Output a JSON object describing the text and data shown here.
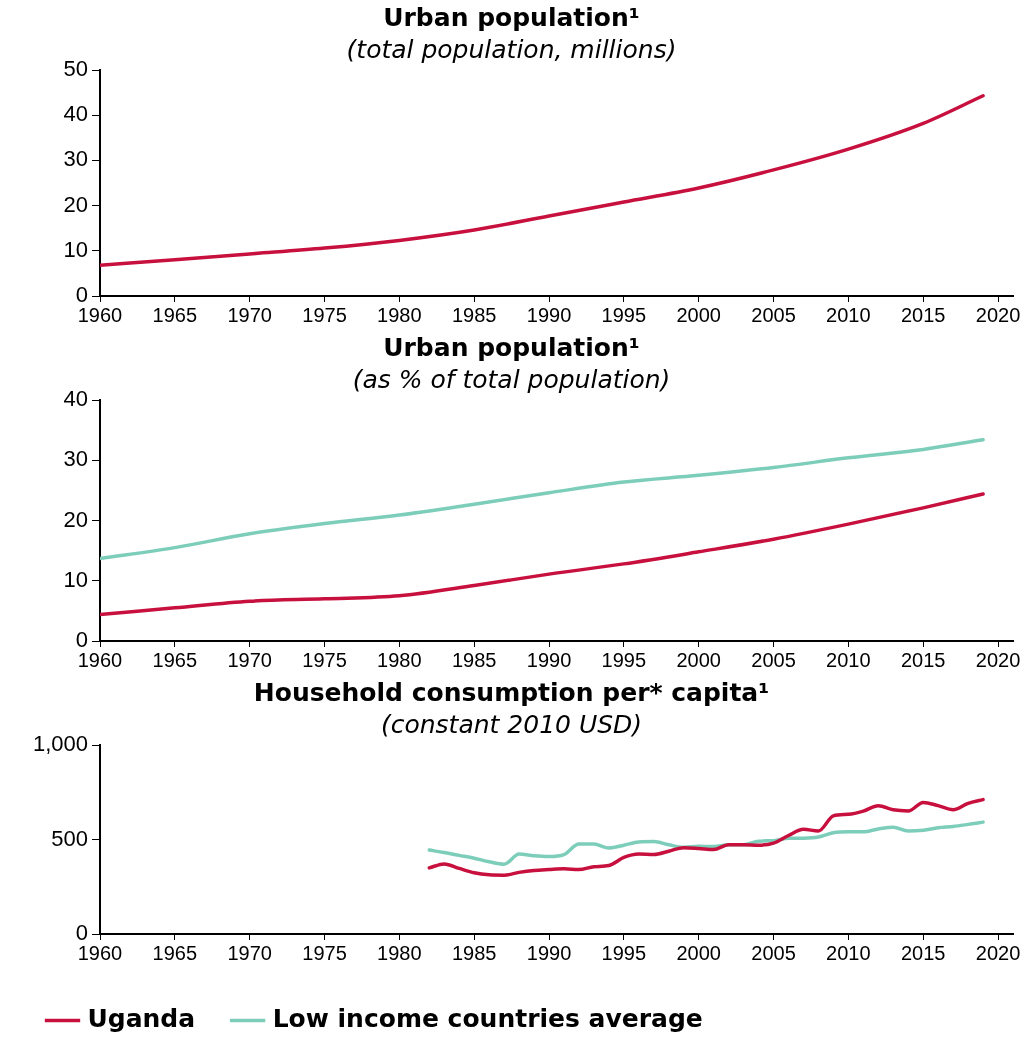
{
  "chart_data": [
    {
      "type": "line",
      "title": "Urban population¹",
      "subtitle": "(total population, millions)",
      "x": [
        1960,
        1965,
        1970,
        1975,
        1980,
        1985,
        1990,
        1995,
        2000,
        2005,
        2010,
        2015,
        2019
      ],
      "series": [
        {
          "color": "#c8103e",
          "values": [
            6.8,
            8.0,
            9.3,
            10.6,
            12.3,
            14.6,
            17.7,
            20.8,
            23.9,
            27.9,
            32.5,
            38.2,
            44.3
          ]
        }
      ],
      "xlim": [
        1960,
        2021
      ],
      "xticks": [
        1960,
        1965,
        1970,
        1975,
        1980,
        1985,
        1990,
        1995,
        2000,
        2005,
        2010,
        2015,
        2020
      ],
      "ylim": [
        0,
        50
      ],
      "yticks": [
        0,
        10,
        20,
        30,
        40,
        50
      ],
      "grid": false
    },
    {
      "type": "line",
      "title": "Urban population¹",
      "subtitle": "(as % of total population)",
      "x": [
        1960,
        1965,
        1970,
        1975,
        1980,
        1985,
        1990,
        1995,
        2000,
        2005,
        2010,
        2015,
        2019
      ],
      "series": [
        {
          "color": "#c8103e",
          "values": [
            4.4,
            5.5,
            6.6,
            7.0,
            7.5,
            9.2,
            11.1,
            12.8,
            14.8,
            16.9,
            19.4,
            22.1,
            24.4
          ]
        },
        {
          "color": "#7dcdbb",
          "values": [
            13.7,
            15.5,
            17.8,
            19.5,
            20.9,
            22.7,
            24.6,
            26.4,
            27.5,
            28.8,
            30.4,
            31.8,
            33.4
          ]
        }
      ],
      "xlim": [
        1960,
        2021
      ],
      "xticks": [
        1960,
        1965,
        1970,
        1975,
        1980,
        1985,
        1990,
        1995,
        2000,
        2005,
        2010,
        2015,
        2020
      ],
      "ylim": [
        0,
        40
      ],
      "yticks": [
        0,
        10,
        20,
        30,
        40
      ],
      "grid": false
    },
    {
      "type": "line",
      "title": "Household consumption per* capita¹",
      "subtitle": "(constant 2010 USD)",
      "x": [
        1982,
        1983,
        1984,
        1985,
        1986,
        1987,
        1988,
        1989,
        1990,
        1991,
        1992,
        1993,
        1994,
        1995,
        1996,
        1997,
        1998,
        1999,
        2000,
        2001,
        2002,
        2003,
        2004,
        2005,
        2006,
        2007,
        2008,
        2009,
        2010,
        2011,
        2012,
        2013,
        2014,
        2015,
        2016,
        2017,
        2018,
        2019
      ],
      "series": [
        {
          "name": "Uganda",
          "color": "#c8103e",
          "values": [
            350,
            371,
            347,
            324,
            313,
            311,
            326,
            336,
            341,
            345,
            341,
            356,
            362,
            405,
            423,
            421,
            438,
            457,
            453,
            447,
            472,
            472,
            470,
            481,
            521,
            554,
            545,
            625,
            633,
            650,
            679,
            657,
            651,
            696,
            679,
            657,
            691,
            711
          ]
        },
        {
          "name": "Low income countries average",
          "color": "#7dcdbb",
          "values": [
            444,
            431,
            416,
            401,
            382,
            369,
            423,
            414,
            410,
            420,
            476,
            476,
            455,
            470,
            487,
            489,
            472,
            459,
            464,
            463,
            472,
            472,
            491,
            494,
            506,
            507,
            513,
            536,
            541,
            541,
            556,
            565,
            545,
            549,
            562,
            569,
            580,
            592
          ]
        }
      ],
      "xlim": [
        1960,
        2021
      ],
      "xticks": [
        1960,
        1965,
        1970,
        1975,
        1980,
        1985,
        1990,
        1995,
        2000,
        2005,
        2010,
        2015,
        2020
      ],
      "ylim": [
        0,
        1000
      ],
      "yticks": [
        0,
        500,
        {
          "value": 1000,
          "label": "1,000"
        }
      ],
      "grid": false,
      "legend": "bottom"
    }
  ]
}
